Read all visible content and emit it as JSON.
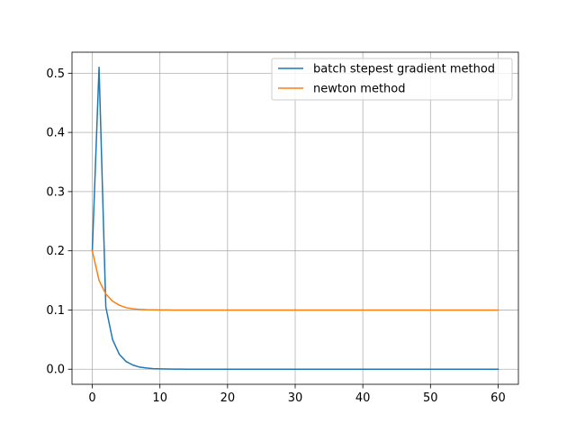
{
  "chart_data": {
    "type": "line",
    "title": "",
    "xlabel": "",
    "ylabel": "",
    "xlim": [
      -3,
      63
    ],
    "ylim": [
      -0.0255,
      0.5355
    ],
    "xticks": [
      0,
      10,
      20,
      30,
      40,
      50,
      60
    ],
    "xtick_labels": [
      "0",
      "10",
      "20",
      "30",
      "40",
      "50",
      "60"
    ],
    "yticks": [
      0.0,
      0.1,
      0.2,
      0.3,
      0.4,
      0.5
    ],
    "ytick_labels": [
      "0.0",
      "0.1",
      "0.2",
      "0.3",
      "0.4",
      "0.5"
    ],
    "grid": true,
    "legend_position": "top-right",
    "series": [
      {
        "name": "batch stepest gradient method",
        "color": "#1f77b4",
        "x": [
          0,
          1,
          2,
          3,
          4,
          5,
          6,
          7,
          8,
          9,
          10,
          11,
          12,
          13,
          14,
          15,
          16,
          20,
          25,
          30,
          35,
          40,
          45,
          50,
          55,
          60
        ],
        "y": [
          0.2,
          0.51,
          0.105,
          0.05,
          0.025,
          0.013,
          0.007,
          0.0035,
          0.002,
          0.001,
          0.0006,
          0.0003,
          0.0002,
          0.0001,
          5e-05,
          3e-05,
          2e-05,
          0.0,
          0.0,
          0.0,
          0.0,
          0.0,
          0.0,
          0.0,
          0.0,
          0.0
        ]
      },
      {
        "name": "newton method",
        "color": "#ff7f0e",
        "x": [
          0,
          1,
          2,
          3,
          4,
          5,
          6,
          7,
          8,
          9,
          10,
          11,
          12,
          15,
          20,
          25,
          30,
          35,
          40,
          45,
          50,
          55,
          60
        ],
        "y": [
          0.2,
          0.15,
          0.127,
          0.115,
          0.108,
          0.104,
          0.102,
          0.101,
          0.1005,
          0.1003,
          0.1002,
          0.1001,
          0.1,
          0.1,
          0.1,
          0.1,
          0.1,
          0.1,
          0.1,
          0.1,
          0.1,
          0.1,
          0.1
        ]
      }
    ]
  }
}
